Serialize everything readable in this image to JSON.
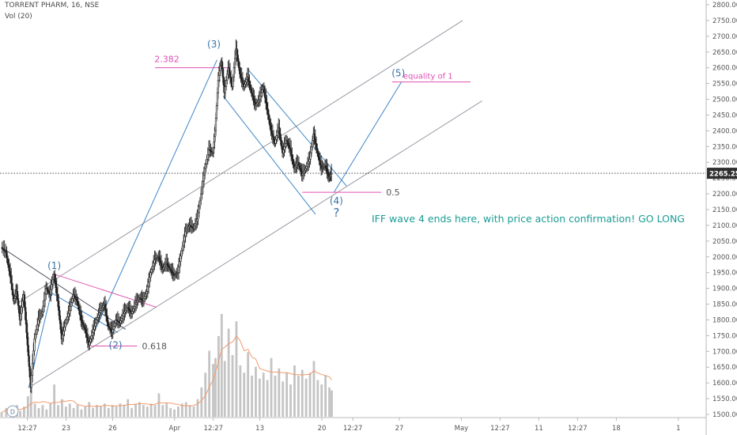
{
  "header": {
    "symbol_line": "TORRENT PHARM, 16, NSE",
    "volume_line": "Vol (20)"
  },
  "chart_data": {
    "type": "candlestick",
    "symbol": "TORRENT PHARM",
    "interval": "16",
    "exchange": "NSE",
    "y_axis": {
      "range": [
        1490,
        2815
      ],
      "ticks": [
        1500,
        1550,
        1600,
        1650,
        1700,
        1750,
        1800,
        1850,
        1900,
        1950,
        2000,
        2050,
        2100,
        2150,
        2200,
        2250,
        2300,
        2350,
        2400,
        2450,
        2500,
        2550,
        2600,
        2650,
        2700,
        2750,
        2800
      ],
      "tick_labels": [
        "1500.00",
        "1550.00",
        "1600.00",
        "1650.00",
        "1700.00",
        "1750.00",
        "1800.00",
        "1850.00",
        "1900.00",
        "1950.00",
        "2000.00",
        "2050.00",
        "2100.00",
        "2150.00",
        "2200.00",
        "2250.00",
        "2300.00",
        "2350.00",
        "2400.00",
        "2450.00",
        "2500.00",
        "2550.00",
        "2600.00",
        "2650.00",
        "2700.00",
        "2750.00",
        "2800.00"
      ]
    },
    "x_axis": {
      "range": [
        0,
        69
      ],
      "ticks": [
        {
          "t": 2,
          "label": "12:27"
        },
        {
          "t": 7,
          "label": "23"
        },
        {
          "t": 13,
          "label": "26"
        },
        {
          "t": 21,
          "label": "Apr"
        },
        {
          "t": 26,
          "label": "12:27"
        },
        {
          "t": 32,
          "label": "13"
        },
        {
          "t": 40,
          "label": "20"
        },
        {
          "t": 44,
          "label": "12:27"
        },
        {
          "t": 50,
          "label": "27"
        },
        {
          "t": 58,
          "label": "May"
        },
        {
          "t": 63,
          "label": "12:27"
        },
        {
          "t": 68,
          "label": "11"
        },
        {
          "t": 73,
          "label": "12:27"
        },
        {
          "t": 78,
          "label": "18"
        },
        {
          "t": 86,
          "label": "1"
        }
      ]
    },
    "price_path": [
      [
        0.0,
        2030
      ],
      [
        0.6,
        2015
      ],
      [
        1.2,
        1935
      ],
      [
        1.6,
        1860
      ],
      [
        2.0,
        1890
      ],
      [
        2.4,
        1800
      ],
      [
        2.9,
        1880
      ],
      [
        3.4,
        1720
      ],
      [
        3.8,
        1585
      ],
      [
        4.3,
        1740
      ],
      [
        4.8,
        1800
      ],
      [
        5.3,
        1825
      ],
      [
        5.8,
        1900
      ],
      [
        6.3,
        1880
      ],
      [
        6.8,
        1945
      ],
      [
        7.3,
        1860
      ],
      [
        7.8,
        1740
      ],
      [
        8.3,
        1790
      ],
      [
        8.8,
        1830
      ],
      [
        9.3,
        1880
      ],
      [
        9.8,
        1860
      ],
      [
        10.3,
        1800
      ],
      [
        10.8,
        1770
      ],
      [
        11.3,
        1720
      ],
      [
        11.8,
        1760
      ],
      [
        12.3,
        1800
      ],
      [
        12.8,
        1830
      ],
      [
        13.3,
        1850
      ],
      [
        13.8,
        1780
      ],
      [
        14.3,
        1760
      ],
      [
        14.8,
        1800
      ],
      [
        15.3,
        1790
      ],
      [
        15.8,
        1820
      ],
      [
        16.3,
        1840
      ],
      [
        16.8,
        1820
      ],
      [
        17.3,
        1850
      ],
      [
        17.8,
        1870
      ],
      [
        18.3,
        1860
      ],
      [
        18.8,
        1890
      ],
      [
        19.3,
        1950
      ],
      [
        19.8,
        1990
      ],
      [
        20.3,
        2000
      ],
      [
        20.8,
        1960
      ],
      [
        21.3,
        1980
      ],
      [
        21.8,
        1960
      ],
      [
        22.3,
        1940
      ],
      [
        22.8,
        1950
      ],
      [
        23.3,
        2020
      ],
      [
        23.8,
        2080
      ],
      [
        24.3,
        2100
      ],
      [
        24.8,
        2090
      ],
      [
        25.3,
        2120
      ],
      [
        25.8,
        2200
      ],
      [
        26.3,
        2280
      ],
      [
        26.8,
        2340
      ],
      [
        27.3,
        2330
      ],
      [
        27.6,
        2400
      ],
      [
        28.0,
        2560
      ],
      [
        28.4,
        2620
      ],
      [
        28.8,
        2520
      ],
      [
        29.3,
        2600
      ],
      [
        29.8,
        2540
      ],
      [
        30.3,
        2660
      ],
      [
        30.8,
        2580
      ],
      [
        31.3,
        2540
      ],
      [
        31.8,
        2570
      ],
      [
        32.3,
        2520
      ],
      [
        32.8,
        2480
      ],
      [
        33.3,
        2500
      ],
      [
        33.8,
        2540
      ],
      [
        34.3,
        2470
      ],
      [
        34.8,
        2400
      ],
      [
        35.3,
        2360
      ],
      [
        35.8,
        2410
      ],
      [
        36.3,
        2330
      ],
      [
        36.8,
        2370
      ],
      [
        37.3,
        2340
      ],
      [
        37.8,
        2280
      ],
      [
        38.3,
        2300
      ],
      [
        38.8,
        2260
      ],
      [
        39.3,
        2280
      ],
      [
        39.8,
        2310
      ],
      [
        40.3,
        2390
      ],
      [
        40.8,
        2330
      ],
      [
        41.3,
        2280
      ],
      [
        41.8,
        2290
      ],
      [
        42.3,
        2250
      ],
      [
        42.6,
        2265
      ]
    ],
    "last_price": 2265.25,
    "last_price_label": "2265.25",
    "volume_profile": [
      [
        0,
        3
      ],
      [
        0.6,
        6
      ],
      [
        1.2,
        5
      ],
      [
        1.6,
        4
      ],
      [
        2.0,
        8
      ],
      [
        2.4,
        4
      ],
      [
        2.9,
        7
      ],
      [
        3.4,
        14
      ],
      [
        3.8,
        18
      ],
      [
        4.3,
        9
      ],
      [
        4.8,
        6
      ],
      [
        5.3,
        8
      ],
      [
        5.8,
        5
      ],
      [
        6.3,
        9
      ],
      [
        6.8,
        22
      ],
      [
        7.3,
        8
      ],
      [
        7.8,
        12
      ],
      [
        8.3,
        7
      ],
      [
        8.8,
        9
      ],
      [
        9.3,
        6
      ],
      [
        9.8,
        8
      ],
      [
        10.3,
        5
      ],
      [
        10.8,
        7
      ],
      [
        11.3,
        10
      ],
      [
        11.8,
        6
      ],
      [
        12.3,
        8
      ],
      [
        12.8,
        7
      ],
      [
        13.3,
        9
      ],
      [
        13.8,
        6
      ],
      [
        14.3,
        8
      ],
      [
        14.8,
        7
      ],
      [
        15.3,
        9
      ],
      [
        15.8,
        8
      ],
      [
        16.3,
        12
      ],
      [
        16.8,
        6
      ],
      [
        17.3,
        9
      ],
      [
        17.8,
        10
      ],
      [
        18.3,
        8
      ],
      [
        18.8,
        7
      ],
      [
        19.3,
        9
      ],
      [
        19.8,
        8
      ],
      [
        20.3,
        16
      ],
      [
        20.8,
        8
      ],
      [
        21.3,
        9
      ],
      [
        21.8,
        6
      ],
      [
        22.3,
        5
      ],
      [
        22.8,
        7
      ],
      [
        23.3,
        9
      ],
      [
        23.8,
        10
      ],
      [
        24.3,
        8
      ],
      [
        24.8,
        7
      ],
      [
        25.3,
        12
      ],
      [
        25.8,
        20
      ],
      [
        26.3,
        30
      ],
      [
        26.8,
        45
      ],
      [
        27.3,
        36
      ],
      [
        27.6,
        40
      ],
      [
        28.0,
        55
      ],
      [
        28.4,
        70
      ],
      [
        28.8,
        38
      ],
      [
        29.3,
        60
      ],
      [
        29.8,
        42
      ],
      [
        30.3,
        65
      ],
      [
        30.8,
        35
      ],
      [
        31.3,
        30
      ],
      [
        31.8,
        44
      ],
      [
        32.3,
        28
      ],
      [
        32.8,
        34
      ],
      [
        33.3,
        26
      ],
      [
        33.8,
        30
      ],
      [
        34.3,
        25
      ],
      [
        34.8,
        40
      ],
      [
        35.3,
        28
      ],
      [
        35.8,
        33
      ],
      [
        36.3,
        24
      ],
      [
        36.8,
        30
      ],
      [
        37.3,
        22
      ],
      [
        37.8,
        35
      ],
      [
        38.3,
        28
      ],
      [
        38.8,
        32
      ],
      [
        39.3,
        26
      ],
      [
        39.8,
        30
      ],
      [
        40.3,
        38
      ],
      [
        40.8,
        25
      ],
      [
        41.3,
        22
      ],
      [
        41.8,
        28
      ],
      [
        42.3,
        20
      ],
      [
        42.6,
        18
      ]
    ],
    "drawings": {
      "fib_levels": [
        {
          "label": "2.382",
          "price": 2600,
          "t1": 19.8,
          "t2": 29.5
        },
        {
          "label": "0.618",
          "price": 1717,
          "t1": 11.5,
          "t2": 17.5
        },
        {
          "label": "0.5",
          "price": 2205,
          "t1": 38.8,
          "t2": 49.0
        },
        {
          "label": "equality of 1",
          "price": 2555,
          "t1": 50.4,
          "t2": 60.5
        }
      ],
      "wave_labels": [
        {
          "text": "(1)",
          "t": 6.8,
          "price": 1962
        },
        {
          "text": "(2)",
          "t": 14.7,
          "price": 1710
        },
        {
          "text": "(3)",
          "t": 27.4,
          "price": 2665
        },
        {
          "text": "(4)",
          "t": 43.2,
          "price": 2168
        },
        {
          "text": "?",
          "t": 43.2,
          "price": 2128
        },
        {
          "text": "(5)",
          "t": 51.2,
          "price": 2573
        }
      ],
      "annotation": "IFF wave 4 ends here, with price action confirmation! GO LONG",
      "trendlines": [
        {
          "role": "main-channel-upper",
          "color": "#9a9aa5",
          "p1": [
            2.2,
            1855
          ],
          "p2": [
            59.5,
            2750
          ]
        },
        {
          "role": "main-channel-lower",
          "color": "#9a9aa5",
          "p1": [
            3.5,
            1585
          ],
          "p2": [
            62.0,
            2495
          ]
        },
        {
          "role": "downtrend-line",
          "color": "#555566",
          "p1": [
            0.0,
            2030
          ],
          "p2": [
            16.0,
            1770
          ]
        },
        {
          "role": "triangle-upper",
          "color": "#e05bb0",
          "p1": [
            6.8,
            1945
          ],
          "p2": [
            20.0,
            1840
          ]
        },
        {
          "role": "triangle-lower",
          "color": "#3d86c8",
          "p1": [
            5.8,
            1895
          ],
          "p2": [
            15.0,
            1760
          ]
        },
        {
          "role": "correction-channel-upper",
          "color": "#3d86c8",
          "p1": [
            31.8,
            2595
          ],
          "p2": [
            44.5,
            2225
          ]
        },
        {
          "role": "correction-channel-lower",
          "color": "#3d86c8",
          "p1": [
            28.6,
            2510
          ],
          "p2": [
            40.5,
            2135
          ]
        },
        {
          "role": "projection-leg-1",
          "color": "#3d86c8",
          "p1": [
            3.5,
            1585
          ],
          "p2": [
            7.0,
            1945
          ]
        },
        {
          "role": "projection-leg-2",
          "color": "#3d86c8",
          "p1": [
            11.2,
            1720
          ],
          "p2": [
            27.8,
            2625
          ]
        },
        {
          "role": "projection-leg-3",
          "color": "#3d86c8",
          "p1": [
            42.9,
            2205
          ],
          "p2": [
            51.6,
            2555
          ]
        }
      ]
    },
    "colors": {
      "candle": "#222222",
      "volume": "#c4c4c4",
      "volume_ma": "#f39a6b",
      "fib_pink": "#e04fb3",
      "wave_blue": "#3973a8",
      "annotation_teal": "#1a9c95",
      "axis_text": "#555555",
      "last_price_bg": "#2e2e2e"
    }
  }
}
